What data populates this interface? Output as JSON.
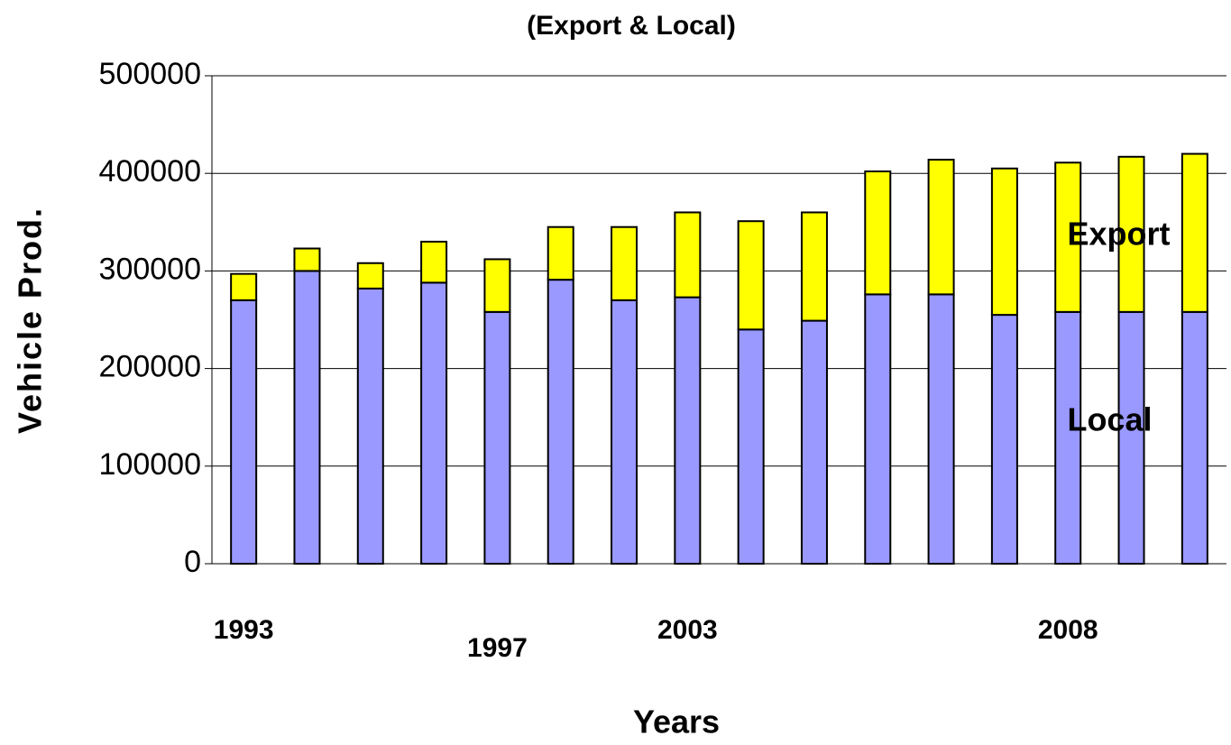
{
  "chart_data": {
    "type": "stacked-bar",
    "title": "(Export & Local)",
    "x_label": "Years",
    "y_label": "Vehicle Prod.",
    "categories": [
      "1993",
      null,
      null,
      null,
      "1997",
      null,
      null,
      "2003",
      null,
      null,
      null,
      null,
      null,
      "2008",
      null,
      null
    ],
    "series": [
      {
        "name": "Local",
        "color": "#9999ff",
        "values": [
          270000,
          300000,
          282000,
          288000,
          258000,
          291000,
          270000,
          273000,
          240000,
          249000,
          276000,
          276000,
          255000,
          258000,
          258000,
          258000
        ]
      },
      {
        "name": "Export",
        "color": "#ffff00",
        "values": [
          27000,
          23000,
          26000,
          42000,
          54000,
          54000,
          75000,
          87000,
          111000,
          111000,
          126000,
          138000,
          150000,
          153000,
          159000,
          162000
        ]
      }
    ],
    "ylim": [
      0,
      500000
    ],
    "yticks": [
      0,
      100000,
      200000,
      300000,
      400000,
      500000
    ],
    "grid": true
  }
}
